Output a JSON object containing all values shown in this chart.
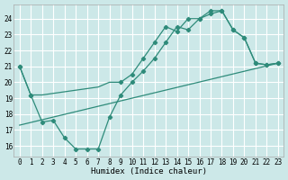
{
  "bg_color": "#cce8e8",
  "grid_color": "#ffffff",
  "line_color": "#2e8b7a",
  "xlabel": "Humidex (Indice chaleur)",
  "xlim": [
    -0.5,
    23.5
  ],
  "ylim": [
    15.3,
    24.9
  ],
  "yticks": [
    16,
    17,
    18,
    19,
    20,
    21,
    22,
    23,
    24
  ],
  "xticks": [
    0,
    1,
    2,
    3,
    4,
    5,
    6,
    7,
    8,
    9,
    10,
    11,
    12,
    13,
    14,
    15,
    16,
    17,
    18,
    19,
    20,
    21,
    22,
    23
  ],
  "line1_x": [
    0,
    1,
    2,
    3,
    4,
    5,
    6,
    7,
    8,
    9,
    10,
    11,
    12,
    13,
    14,
    15,
    16,
    17,
    18,
    19,
    20,
    21,
    22,
    23
  ],
  "line1_y": [
    21.0,
    19.2,
    19.2,
    19.3,
    19.4,
    19.5,
    19.6,
    19.7,
    20.0,
    20.0,
    20.5,
    21.5,
    22.5,
    23.5,
    23.2,
    24.0,
    24.0,
    24.5,
    24.5,
    23.3,
    22.8,
    21.2,
    21.1,
    21.2
  ],
  "line1_marker_x": [
    0,
    1,
    9,
    10,
    11,
    12,
    13,
    14,
    15,
    16,
    17,
    18,
    19,
    20,
    21,
    22,
    23
  ],
  "line1_marker_y": [
    21.0,
    19.2,
    20.0,
    20.5,
    21.5,
    22.5,
    23.5,
    23.2,
    24.0,
    24.0,
    24.5,
    24.5,
    23.3,
    22.8,
    21.2,
    21.1,
    21.2
  ],
  "line2_x": [
    0,
    1,
    2,
    3,
    4,
    5,
    6,
    7,
    8,
    9,
    10,
    11,
    12,
    13,
    14,
    15,
    16,
    17,
    18,
    19,
    20,
    21,
    22,
    23
  ],
  "line2_y": [
    21.0,
    19.2,
    17.5,
    17.6,
    16.5,
    15.8,
    15.8,
    15.8,
    17.8,
    19.2,
    20.0,
    20.7,
    21.5,
    22.5,
    23.5,
    23.3,
    24.0,
    24.3,
    24.5,
    23.3,
    22.8,
    21.2,
    21.1,
    21.2
  ],
  "line2_marker_x": [
    0,
    1,
    2,
    3,
    4,
    5,
    6,
    7,
    8,
    9,
    10,
    11,
    12,
    13,
    14,
    15,
    16,
    17,
    18,
    19,
    20,
    21,
    22,
    23
  ],
  "line2_marker_y": [
    21.0,
    19.2,
    17.5,
    17.6,
    16.5,
    15.8,
    15.8,
    15.8,
    17.8,
    19.2,
    20.0,
    20.7,
    21.5,
    22.5,
    23.5,
    23.3,
    24.0,
    24.3,
    24.5,
    23.3,
    22.8,
    21.2,
    21.1,
    21.2
  ],
  "line3_x": [
    0,
    23
  ],
  "line3_y": [
    17.3,
    21.2
  ]
}
